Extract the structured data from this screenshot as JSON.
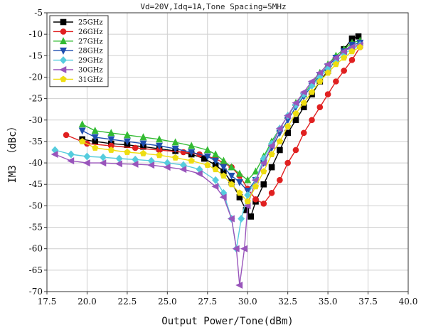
{
  "chart_data": {
    "type": "line",
    "title": "Vd=20V,Idq=1A,Tone Spacing=5MHz",
    "xlabel": "Output Power/Tone(dBm)",
    "ylabel": "IM3 （dBc）",
    "xlim": [
      17.5,
      40.0
    ],
    "ylim": [
      -70,
      -5
    ],
    "xticks": [
      "17.5",
      "20.0",
      "22.5",
      "25.0",
      "27.5",
      "30.0",
      "32.5",
      "35.0",
      "37.5",
      "40.0"
    ],
    "yticks": [
      "-5",
      "-10",
      "-15",
      "-20",
      "-25",
      "-30",
      "-35",
      "-40",
      "-45",
      "-50",
      "-55",
      "-60",
      "-65",
      "-70"
    ],
    "grid": true,
    "legend_position": "top-left",
    "series": [
      {
        "name": "25GHz",
        "color": "#000000",
        "marker": "square",
        "x": [
          19.7,
          20.5,
          21.5,
          22.5,
          23.5,
          24.5,
          25.5,
          26.5,
          27.3,
          28.0,
          28.5,
          29.0,
          29.5,
          29.9,
          30.2,
          30.5,
          31.0,
          31.5,
          32.0,
          32.5,
          33.0,
          33.5,
          34.0,
          34.5,
          35.0,
          35.5,
          36.0,
          36.5,
          36.9
        ],
        "y": [
          -34.5,
          -35,
          -35.5,
          -35.8,
          -36.2,
          -36.7,
          -37.2,
          -38,
          -39,
          -40.5,
          -42,
          -44.5,
          -48,
          -51,
          -52.5,
          -49,
          -45,
          -41,
          -37,
          -33,
          -30,
          -27,
          -24,
          -21,
          -18.5,
          -16,
          -13.5,
          -11,
          -10.5
        ]
      },
      {
        "name": "26GHz",
        "color": "#e02020",
        "marker": "circle",
        "x": [
          18.7,
          20.0,
          21.5,
          23.0,
          24.5,
          26.0,
          27.0,
          28.0,
          28.5,
          29.0,
          29.5,
          30.0,
          30.5,
          31.0,
          31.5,
          32.0,
          32.5,
          33.0,
          33.5,
          34.0,
          34.5,
          35.0,
          35.5,
          36.0,
          36.5,
          37.0
        ],
        "y": [
          -33.5,
          -35.5,
          -36,
          -36.5,
          -37,
          -37.5,
          -38,
          -39,
          -40,
          -41,
          -43,
          -46,
          -48.5,
          -49.5,
          -47,
          -44,
          -40,
          -37,
          -33,
          -30,
          -27,
          -24,
          -21,
          -18.5,
          -16,
          -13
        ]
      },
      {
        "name": "27GHz",
        "color": "#33bb33",
        "marker": "triangle",
        "x": [
          19.7,
          20.5,
          21.5,
          22.5,
          23.5,
          24.5,
          25.5,
          26.5,
          27.5,
          28.0,
          28.5,
          29.0,
          29.5,
          30.0,
          30.5,
          31.0,
          31.5,
          32.0,
          32.5,
          33.0,
          33.5,
          34.0,
          34.5,
          35.0,
          35.5,
          36.0,
          36.5,
          37.0
        ],
        "y": [
          -31,
          -32.5,
          -33,
          -33.5,
          -34,
          -34.5,
          -35.2,
          -36,
          -37,
          -38,
          -39.5,
          -41,
          -42.5,
          -44,
          -42,
          -38.5,
          -35,
          -32,
          -29,
          -26,
          -24,
          -21.5,
          -19,
          -17,
          -15,
          -13.5,
          -12,
          -11.5
        ]
      },
      {
        "name": "28GHz",
        "color": "#1f4fb0",
        "marker": "triangle-down",
        "x": [
          19.7,
          20.5,
          21.5,
          22.5,
          23.5,
          24.5,
          25.5,
          26.5,
          27.5,
          28.0,
          28.5,
          29.0,
          29.5,
          30.0,
          30.5,
          31.0,
          31.5,
          32.0,
          32.5,
          33.0,
          33.5,
          34.0,
          34.5,
          35.0,
          35.5,
          36.0,
          36.5,
          37.0
        ],
        "y": [
          -32.5,
          -34,
          -34.5,
          -35,
          -35.5,
          -36,
          -36.7,
          -37.5,
          -38.5,
          -39.5,
          -41,
          -43,
          -44.5,
          -46.5,
          -44,
          -40,
          -36.5,
          -33,
          -30,
          -27,
          -24.5,
          -22,
          -19.5,
          -17.5,
          -15.5,
          -14,
          -12.5,
          -12
        ]
      },
      {
        "name": "29GHz",
        "color": "#55ccdd",
        "marker": "diamond",
        "x": [
          18.0,
          19.0,
          20.0,
          21.0,
          22.0,
          23.0,
          24.0,
          25.0,
          26.0,
          27.0,
          28.0,
          28.5,
          29.0,
          29.3,
          29.6,
          30.0,
          30.5,
          31.0,
          31.5,
          32.0,
          32.5,
          33.0,
          33.5,
          34.0,
          34.5,
          35.0,
          35.5,
          36.0,
          36.5,
          37.0
        ],
        "y": [
          -37,
          -38,
          -38.5,
          -38.7,
          -39,
          -39.2,
          -39.5,
          -40,
          -40.5,
          -41.5,
          -44,
          -47,
          -53,
          -60,
          -53,
          -47.5,
          -44,
          -39,
          -35.5,
          -32,
          -29,
          -26.5,
          -24,
          -22,
          -20,
          -18,
          -16.5,
          -14.5,
          -13.5,
          -12.5
        ]
      },
      {
        "name": "30GHz",
        "color": "#9955bb",
        "marker": "triangle-left",
        "x": [
          18.0,
          19.0,
          20.0,
          21.0,
          22.0,
          23.0,
          24.0,
          25.0,
          26.0,
          27.0,
          28.0,
          28.5,
          29.0,
          29.3,
          29.5,
          29.8,
          30.0,
          30.5,
          31.0,
          31.5,
          32.0,
          32.5,
          33.0,
          33.5,
          34.0,
          34.5,
          35.0,
          35.5,
          36.0,
          36.5,
          37.0
        ],
        "y": [
          -38,
          -39.5,
          -40,
          -40,
          -40.2,
          -40.3,
          -40.5,
          -41,
          -41.5,
          -42.5,
          -45.5,
          -48,
          -53,
          -60,
          -68.5,
          -60,
          -50,
          -44,
          -40,
          -36,
          -32,
          -29,
          -26,
          -23.5,
          -21,
          -19,
          -17,
          -15.5,
          -14,
          -13,
          -12.5
        ]
      },
      {
        "name": "31GHz",
        "color": "#eedd11",
        "marker": "pentagon",
        "x": [
          19.7,
          20.5,
          21.5,
          22.5,
          23.5,
          24.5,
          25.5,
          26.5,
          27.5,
          28.0,
          28.5,
          29.0,
          29.5,
          30.0,
          30.5,
          31.0,
          31.5,
          32.0,
          32.5,
          33.0,
          33.5,
          34.0,
          34.5,
          35.0,
          35.5,
          36.0,
          36.5,
          37.0
        ],
        "y": [
          -35,
          -36.5,
          -37,
          -37.5,
          -37.8,
          -38.2,
          -38.8,
          -39.5,
          -40.5,
          -41.5,
          -43,
          -45,
          -47,
          -49,
          -45.5,
          -42,
          -38,
          -35,
          -31.5,
          -28.5,
          -26,
          -23.5,
          -21,
          -19,
          -17,
          -15.5,
          -14,
          -13
        ]
      }
    ]
  }
}
